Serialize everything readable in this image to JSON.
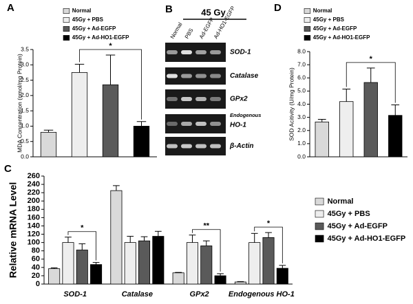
{
  "chart_data": [
    {
      "panel": "A",
      "type": "bar",
      "ylabel": "MDA Concentration (nmol/mg Protein)",
      "categories": [
        null
      ],
      "series": [
        {
          "name": "Normal",
          "color": "#d9d9d9",
          "values": [
            0.8
          ],
          "errors": [
            0.07
          ]
        },
        {
          "name": "45Gy + PBS",
          "color": "#eeeeee",
          "values": [
            2.75
          ],
          "errors": [
            0.27
          ]
        },
        {
          "name": "45Gy + Ad-EGFP",
          "color": "#5a5a5a",
          "values": [
            2.35
          ],
          "errors": [
            0.97
          ]
        },
        {
          "name": "45Gy + Ad-HO1-EGFP",
          "color": "#000000",
          "values": [
            1.0
          ],
          "errors": [
            0.15
          ]
        }
      ],
      "ylim": [
        0,
        3.5
      ],
      "yticks": [
        {
          "value": 0,
          "label": "0.0"
        },
        0.5,
        {
          "value": 1,
          "label": "1.0"
        },
        1.5,
        {
          "value": 2,
          "label": "2.0"
        },
        2.5,
        {
          "value": 3,
          "label": "3.0"
        },
        3.5
      ],
      "legend": "top",
      "brackets": [
        {
          "label": "*",
          "category": 0,
          "from": 1,
          "to": 3
        }
      ]
    },
    {
      "panel": "C",
      "type": "bar",
      "ylabel": "Relative mRNA Level",
      "categories": [
        "SOD-1",
        "Catalase",
        "GPx2",
        "Endogenous HO-1"
      ],
      "series": [
        {
          "name": "Normal",
          "color": "#d9d9d9",
          "values": [
            37,
            225,
            27,
            5
          ],
          "errors": [
            2,
            12,
            1,
            1
          ]
        },
        {
          "name": "45Gy + PBS",
          "color": "#eeeeee",
          "values": [
            100,
            100,
            100,
            100
          ],
          "errors": [
            13,
            15,
            18,
            22
          ]
        },
        {
          "name": "45Gy + Ad-EGFP",
          "color": "#5a5a5a",
          "values": [
            82,
            104,
            92,
            112
          ],
          "errors": [
            15,
            10,
            12,
            12
          ]
        },
        {
          "name": "45Gy + Ad-HO1-EGFP",
          "color": "#000000",
          "values": [
            47,
            115,
            20,
            38
          ],
          "errors": [
            5,
            12,
            5,
            7
          ]
        }
      ],
      "ylim": [
        0,
        260
      ],
      "yticks": [
        0,
        20,
        40,
        60,
        80,
        100,
        120,
        140,
        160,
        180,
        200,
        220,
        240,
        260
      ],
      "legend": "right",
      "brackets": [
        {
          "label": "*",
          "category": 0,
          "from": 1,
          "to": 3
        },
        {
          "label": "**",
          "category": 2,
          "from": 1,
          "to": 3
        },
        {
          "label": "*",
          "category": 3,
          "from": 1,
          "to": 3
        }
      ]
    },
    {
      "panel": "D",
      "type": "bar",
      "ylabel": "SOD Acitivity (U/mg Protein)",
      "categories": [
        null
      ],
      "series": [
        {
          "name": "Normal",
          "color": "#d9d9d9",
          "values": [
            2.65
          ],
          "errors": [
            0.2
          ]
        },
        {
          "name": "45Gy + PBS",
          "color": "#eeeeee",
          "values": [
            4.2
          ],
          "errors": [
            0.95
          ]
        },
        {
          "name": "45Gy + Ad-EGFP",
          "color": "#5a5a5a",
          "values": [
            5.65
          ],
          "errors": [
            1.1
          ]
        },
        {
          "name": "45Gy + Ad-HO1-EGFP",
          "color": "#000000",
          "values": [
            3.15
          ],
          "errors": [
            0.8
          ]
        }
      ],
      "ylim": [
        0,
        8
      ],
      "yticks": [
        {
          "value": 0,
          "label": "0.0"
        },
        {
          "value": 1,
          "label": "1.0"
        },
        {
          "value": 2,
          "label": "2.0"
        },
        {
          "value": 3,
          "label": "3.0"
        },
        {
          "value": 4,
          "label": "4.0"
        },
        {
          "value": 5,
          "label": "5.0"
        },
        {
          "value": 6,
          "label": "6.0"
        },
        {
          "value": 7,
          "label": "7.0"
        },
        {
          "value": 8,
          "label": "8.0"
        }
      ],
      "legend": "top",
      "brackets": [
        {
          "label": "*",
          "category": 0,
          "from": 1,
          "to": 3
        }
      ]
    }
  ],
  "gel": {
    "panel": "B",
    "title": "45 Gy",
    "lanes": [
      "Normal",
      "PBS",
      "Ad-EGFP",
      "Ad-HO1-EGFP"
    ],
    "genes": [
      {
        "label": "SOD-1"
      },
      {
        "label": "Catalase"
      },
      {
        "label": "GPx2"
      },
      {
        "prefix": "Endogenous",
        "label": "HO-1"
      },
      {
        "label": "β-Actin"
      }
    ]
  }
}
